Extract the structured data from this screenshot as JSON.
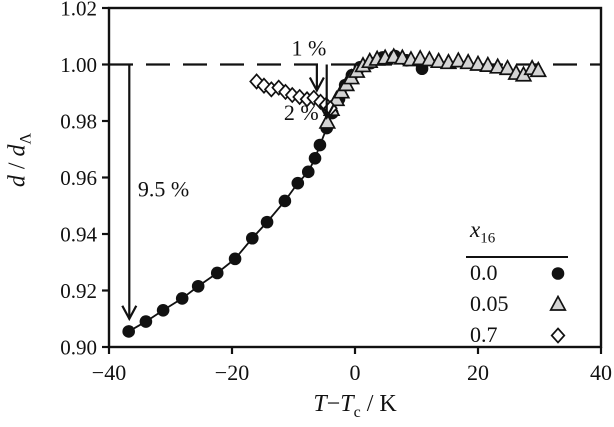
{
  "figure": {
    "background": "#ffffff",
    "ink_color": "#111111"
  },
  "axes": {
    "xlabel": {
      "t1": "T",
      "minus": "−",
      "t2": "T",
      "sub": "c",
      "unit": " / K"
    },
    "ylabel": {
      "d1": "d",
      "slash": " / ",
      "d2": "d",
      "sub": "Λ"
    }
  },
  "legend": {
    "header": {
      "base": "x",
      "sub": "16"
    },
    "items": [
      {
        "label": "0.0",
        "marker": "filled-circle"
      },
      {
        "label": "0.05",
        "marker": "open-triangle"
      },
      {
        "label": "0.7",
        "marker": "open-diamond"
      }
    ]
  },
  "chart_data": {
    "type": "scatter",
    "title": "",
    "xlabel": "T−Tc / K",
    "ylabel": "d / dΛ",
    "xlim": [
      -40,
      40
    ],
    "ylim": [
      0.9,
      1.02
    ],
    "grid": false,
    "legend_position": "lower-right",
    "x_ticks": {
      "values": [
        -40,
        -20,
        0,
        20,
        40
      ],
      "labels": [
        "−40",
        "−20",
        "0",
        "20",
        "40"
      ]
    },
    "y_ticks": {
      "values": [
        0.9,
        0.92,
        0.94,
        0.96,
        0.98,
        1.0,
        1.02
      ],
      "labels": [
        "0.90",
        "0.92",
        "0.94",
        "0.96",
        "0.98",
        "1.00",
        "1.02"
      ]
    },
    "reference_line": {
      "y": 1.0,
      "style": "dashed"
    },
    "marker_fills": {
      "filled-circle": "#111111",
      "open-triangle": "#d4d4d4",
      "open-diamond": "#ffffff"
    },
    "series": [
      {
        "name": "0.0",
        "marker": "filled-circle",
        "line_width": 1.8,
        "points": [
          [
            -36.8,
            0.9055
          ],
          [
            -34.0,
            0.909
          ],
          [
            -31.2,
            0.913
          ],
          [
            -28.1,
            0.9172
          ],
          [
            -25.5,
            0.9215
          ],
          [
            -22.4,
            0.9262
          ],
          [
            -19.5,
            0.9312
          ],
          [
            -16.7,
            0.9385
          ],
          [
            -14.3,
            0.9442
          ],
          [
            -11.4,
            0.9517
          ],
          [
            -9.3,
            0.958
          ],
          [
            -7.6,
            0.962
          ],
          [
            -6.5,
            0.9668
          ],
          [
            -5.7,
            0.9715
          ],
          [
            -4.6,
            0.9775
          ],
          [
            -3.7,
            0.9828
          ],
          [
            -2.6,
            0.9878
          ],
          [
            -1.6,
            0.9927
          ],
          [
            -0.5,
            0.9962
          ],
          [
            0.8,
            0.999
          ],
          [
            2.6,
            1.0005
          ],
          [
            4.5,
            1.0025
          ],
          [
            6.5,
            1.003
          ],
          [
            8.4,
            1.0015
          ],
          [
            10.9,
            0.9985
          ]
        ]
      },
      {
        "name": "0.05",
        "marker": "open-triangle",
        "line_width": 1.5,
        "points": [
          [
            -4.5,
            0.9795
          ],
          [
            -3.8,
            0.984
          ],
          [
            -3.0,
            0.9875
          ],
          [
            -2.2,
            0.9902
          ],
          [
            -1.4,
            0.9928
          ],
          [
            -0.6,
            0.9952
          ],
          [
            0.3,
            0.9975
          ],
          [
            1.3,
            0.9995
          ],
          [
            2.4,
            1.001
          ],
          [
            3.6,
            1.0018
          ],
          [
            4.9,
            1.0022
          ],
          [
            6.3,
            1.0026
          ],
          [
            7.7,
            1.0022
          ],
          [
            9.1,
            1.0016
          ],
          [
            10.6,
            1.002
          ],
          [
            12.1,
            1.0016
          ],
          [
            13.6,
            1.001
          ],
          [
            15.2,
            1.0006
          ],
          [
            16.8,
            1.0012
          ],
          [
            18.4,
            1.0006
          ],
          [
            20.0,
            1.0
          ],
          [
            21.6,
            0.9996
          ],
          [
            23.2,
            0.999
          ],
          [
            24.8,
            0.9985
          ],
          [
            26.2,
            0.9968
          ],
          [
            27.4,
            0.9962
          ],
          [
            28.8,
            0.9985
          ],
          [
            29.8,
            0.9978
          ]
        ]
      },
      {
        "name": "0.7",
        "marker": "open-diamond",
        "line_width": 1.3,
        "points": [
          [
            -16.0,
            0.994
          ],
          [
            -14.8,
            0.9925
          ],
          [
            -13.6,
            0.9912
          ],
          [
            -12.4,
            0.9918
          ],
          [
            -11.3,
            0.9903
          ],
          [
            -10.2,
            0.9892
          ],
          [
            -9.0,
            0.9885
          ],
          [
            -7.8,
            0.9877
          ],
          [
            -6.7,
            0.9882
          ],
          [
            -5.6,
            0.9868
          ],
          [
            -4.7,
            0.9857
          ],
          [
            -4.0,
            0.9845
          ]
        ]
      }
    ],
    "annotations": [
      {
        "label": "9.5 %",
        "x": -36.7,
        "y_from": 1.0,
        "y_to": 0.91,
        "label_x": -35.3,
        "label_y": 0.956,
        "anchor": "start"
      },
      {
        "label": "1 %",
        "x": -6.2,
        "y_from": 1.0,
        "y_to": 0.9908,
        "label_x": -7.5,
        "label_y": 1.006,
        "anchor": "middle"
      },
      {
        "label": "2 %",
        "x": -4.6,
        "y_from": 1.0,
        "y_to": 0.9812,
        "label_x": -5.9,
        "label_y": 0.983,
        "anchor": "end"
      }
    ]
  }
}
